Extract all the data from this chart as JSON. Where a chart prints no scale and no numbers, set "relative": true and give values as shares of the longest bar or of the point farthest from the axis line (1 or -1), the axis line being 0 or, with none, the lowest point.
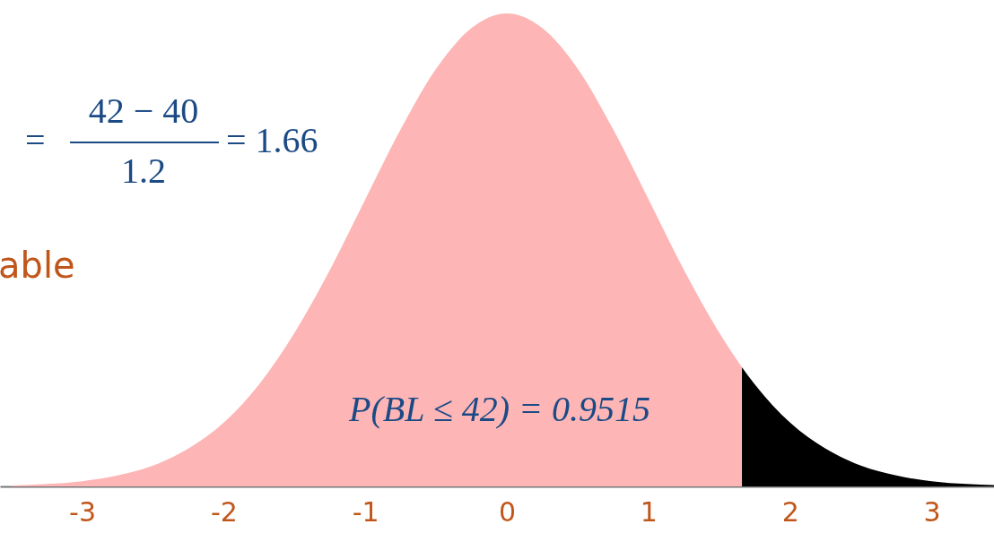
{
  "chart_data": {
    "type": "area",
    "relative": true,
    "xlim": [
      -3.58,
      3.44
    ],
    "xticks": [
      -3,
      -2,
      -1,
      0,
      1,
      2,
      3
    ],
    "grid": false,
    "series": [
      {
        "color": "#fdb5b5",
        "x": [
          -3.5,
          -3.25,
          -3,
          -2.75,
          -2.5,
          -2.25,
          -2,
          -1.75,
          -1.5,
          -1.25,
          -1,
          -0.75,
          -0.5,
          -0.25,
          0,
          0.25,
          0.5,
          0.75,
          1,
          1.25,
          1.5,
          1.66
        ],
        "values": [
          0.002,
          0.005,
          0.011,
          0.023,
          0.044,
          0.08,
          0.135,
          0.216,
          0.325,
          0.458,
          0.607,
          0.755,
          0.883,
          0.969,
          1,
          0.969,
          0.883,
          0.755,
          0.607,
          0.458,
          0.325,
          0.252
        ]
      },
      {
        "color": "#000000",
        "x": [
          1.66,
          1.75,
          2,
          2.25,
          2.5,
          2.75,
          3,
          3.25,
          3.44
        ],
        "values": [
          0.252,
          0.216,
          0.135,
          0.08,
          0.044,
          0.023,
          0.011,
          0.005,
          0.003
        ]
      }
    ],
    "annotations": [
      "=",
      "42 − 40",
      "1.2",
      "= 1.66",
      "able",
      "P(BL ≤ 42) = 0.9515"
    ]
  }
}
